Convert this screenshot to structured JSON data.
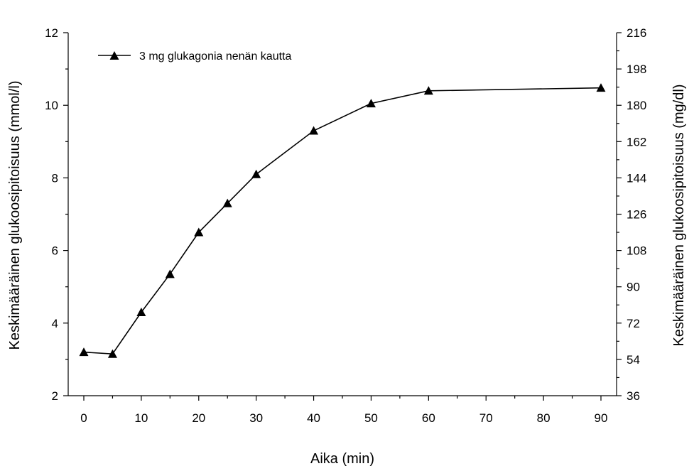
{
  "chart_data": {
    "type": "line",
    "title": "",
    "xlabel": "Aika (min)",
    "ylabel": "Keskimääräinen glukoosipitoisuus (mmol/l)",
    "y2label": "Keskimääräinen glukoosipitoisuus (mg/dl)",
    "xlim": [
      0,
      90
    ],
    "ylim": [
      2,
      12
    ],
    "y2lim": [
      36,
      216
    ],
    "xticks": [
      "0",
      "10",
      "20",
      "30",
      "40",
      "50",
      "60",
      "70",
      "80",
      "90"
    ],
    "yticks": [
      "2",
      "4",
      "6",
      "8",
      "10",
      "12"
    ],
    "y2ticks": [
      "36",
      "54",
      "72",
      "90",
      "108",
      "126",
      "144",
      "162",
      "180",
      "198",
      "216"
    ],
    "legend_position": "top-left",
    "grid": false,
    "series": [
      {
        "name": "3 mg glukagonia nenän kautta",
        "marker": "triangle",
        "color": "#000000",
        "x": [
          0,
          5,
          10,
          15,
          20,
          25,
          30,
          40,
          50,
          60,
          90
        ],
        "y": [
          3.2,
          3.15,
          4.3,
          5.35,
          6.5,
          7.3,
          8.1,
          9.3,
          10.05,
          10.4,
          10.48
        ]
      }
    ]
  }
}
